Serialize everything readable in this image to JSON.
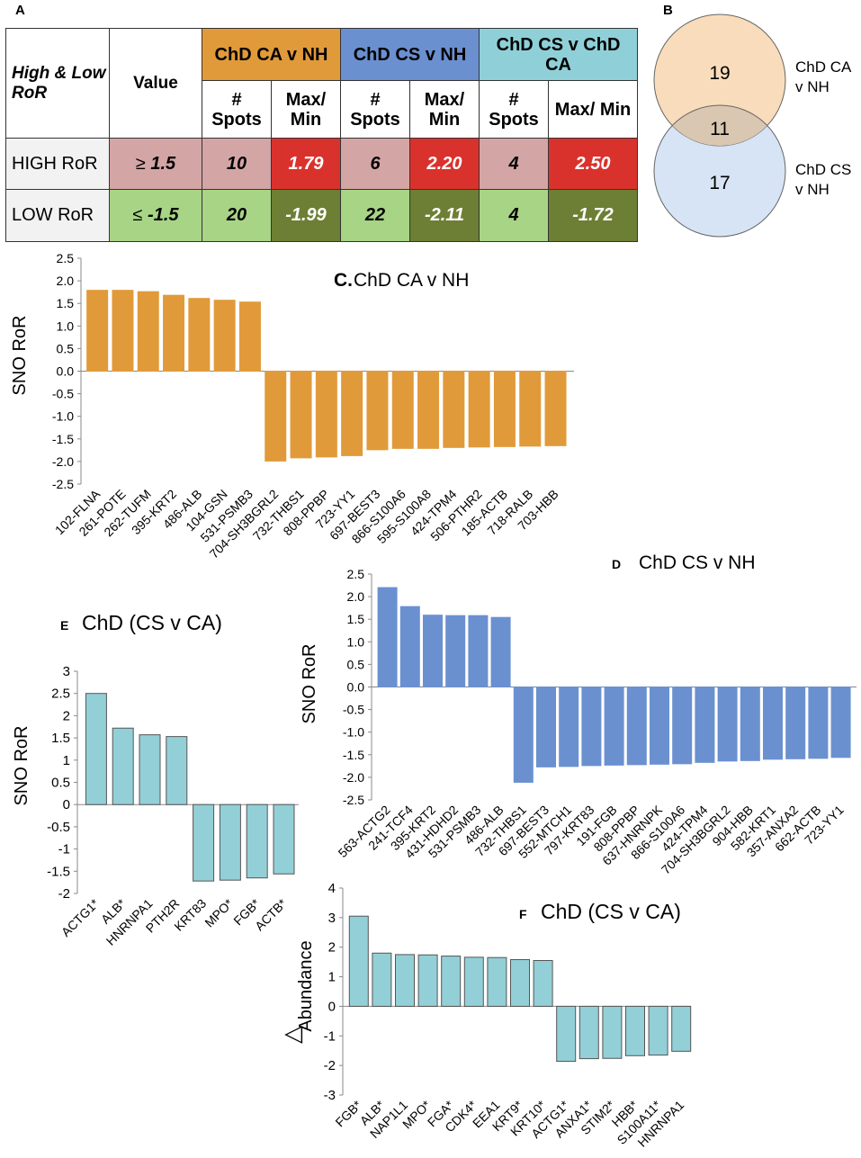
{
  "panel_a": {
    "letter": "A",
    "corner": "High & Low RoR",
    "value_header": "Value",
    "groups": [
      {
        "label": "ChD CA v NH",
        "color": "#e19a3a"
      },
      {
        "label": "ChD CS v NH",
        "color": "#6b90d0"
      },
      {
        "label": "ChD CS v ChD CA",
        "color": "#8fd0d8"
      }
    ],
    "sub_spots": "# Spots",
    "sub_max": "Max/ Min",
    "rows": [
      {
        "label": "HIGH RoR",
        "sym": "≥",
        "value": "1.5",
        "cells": [
          "10",
          "1.79",
          "6",
          "2.20",
          "4",
          "2.50"
        ]
      },
      {
        "label": "LOW RoR",
        "sym": "≤",
        "value": "-1.5",
        "cells": [
          "20",
          "-1.99",
          "22",
          "-2.11",
          "4",
          "-1.72"
        ]
      }
    ]
  },
  "panel_b": {
    "letter": "B",
    "ca_only": "19",
    "overlap": "11",
    "cs_only": "17",
    "label_ca": [
      "ChD CA",
      "v NH"
    ],
    "label_cs": [
      "ChD CS",
      "v NH"
    ],
    "color_ca": "#f8dcbb",
    "color_cs": "#d6e4f5",
    "color_overlap": "#d9c7b2"
  },
  "chart_data": [
    {
      "id": "C",
      "type": "bar",
      "title_letter": "C.",
      "title": "ChD CA v NH",
      "ylabel": "SNO RoR",
      "ylim": [
        -2.5,
        2.5
      ],
      "ytick_step": 0.5,
      "ytick_decimals": 1,
      "color": "#e19a3a",
      "stroke": "#e19a3a",
      "categories": [
        "102-FLNA",
        "261-POTE",
        "262-TUFM",
        "395-KRT2",
        "486-ALB",
        "104-GSN",
        "531-PSMB3",
        "704-SH3BGRL2",
        "732-THBS1",
        "808-PPBP",
        "723-YY1",
        "697-BEST3",
        "866-S100A6",
        "595-S100A8",
        "424-TPM4",
        "506-PTHR2",
        "185-ACTB",
        "718-RALB",
        "703-HBB"
      ],
      "values": [
        1.79,
        1.79,
        1.76,
        1.68,
        1.61,
        1.57,
        1.53,
        -1.99,
        -1.92,
        -1.9,
        -1.87,
        -1.74,
        -1.71,
        -1.71,
        -1.69,
        -1.68,
        -1.67,
        -1.66,
        -1.65
      ]
    },
    {
      "id": "D",
      "type": "bar",
      "title_letter": "D",
      "title": "ChD CS v NH",
      "ylabel": "SNO RoR",
      "ylim": [
        -2.5,
        2.5
      ],
      "ytick_step": 0.5,
      "ytick_decimals": 1,
      "color": "#6b90d0",
      "stroke": "#6b90d0",
      "categories": [
        "563-ACTG2",
        "241-TCF4",
        "395-KRT2",
        "431-HDHD2",
        "531-PSMB3",
        "486-ALB",
        "732-THBS1",
        "697-BEST3",
        "552-MTCH1",
        "797-KRT83",
        "191-FGB",
        "808-PPBP",
        "637-HNRNPK",
        "866-S100A6",
        "424-TPM4",
        "704-SH3BGRL2",
        "904-HBB",
        "582-KRT1",
        "357-ANXA2",
        "662-ACTB",
        "723-YY1"
      ],
      "values": [
        2.2,
        1.78,
        1.59,
        1.58,
        1.58,
        1.54,
        -2.11,
        -1.77,
        -1.76,
        -1.74,
        -1.73,
        -1.72,
        -1.71,
        -1.7,
        -1.67,
        -1.64,
        -1.63,
        -1.6,
        -1.59,
        -1.58,
        -1.56
      ]
    },
    {
      "id": "E",
      "type": "bar",
      "title_letter": "E",
      "title": "ChD (CS v CA)",
      "ylabel": "SNO RoR",
      "ylim": [
        -2,
        3
      ],
      "ytick_step": 0.5,
      "ytick_decimals": -1,
      "color": "#93cfd6",
      "stroke": "#555555",
      "categories": [
        "ACTG1*",
        "ALB*",
        "HNRNPA1",
        "PTH2R",
        "KRT83",
        "MPO*",
        "FGB*",
        "ACTB*"
      ],
      "values": [
        2.5,
        1.72,
        1.57,
        1.53,
        -1.72,
        -1.7,
        -1.65,
        -1.56
      ]
    },
    {
      "id": "F",
      "type": "bar",
      "title_letter": "F",
      "title": "ChD (CS v CA)",
      "ylabel": "Abundance",
      "ylabel_symbol": "△",
      "ylim": [
        -3,
        4
      ],
      "ytick_step": 1,
      "ytick_decimals": 0,
      "color": "#93cfd6",
      "stroke": "#555555",
      "categories": [
        "FGB*",
        "ALB*",
        "NAP1L1",
        "MPO*",
        "FGA*",
        "CDK4*",
        "EEA1",
        "KRT9*",
        "KRT10*",
        "ACTG1*",
        "ANXA1*",
        "STIM2*",
        "HBB*",
        "S100A11*",
        "HNRNPA1"
      ],
      "values": [
        3.05,
        1.8,
        1.75,
        1.74,
        1.7,
        1.66,
        1.65,
        1.58,
        1.55,
        -1.86,
        -1.77,
        -1.76,
        -1.67,
        -1.65,
        -1.52
      ]
    }
  ]
}
